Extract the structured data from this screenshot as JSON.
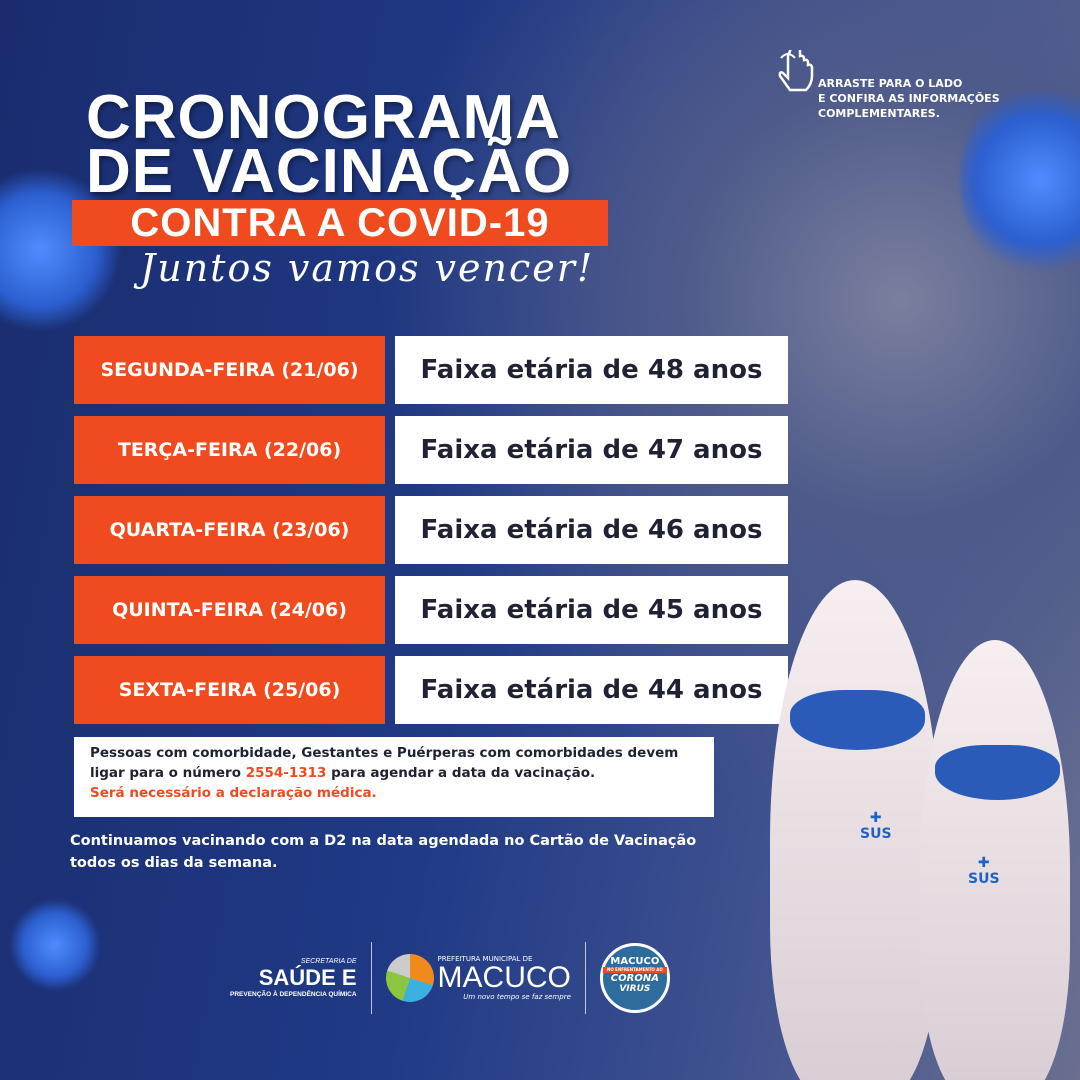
{
  "swipe": {
    "icon": "hand-swipe-icon",
    "lines": [
      "ARRASTE PARA O LADO",
      "E CONFIRA AS INFORMAÇÕES",
      "COMPLEMENTARES."
    ]
  },
  "title": {
    "line1": "CRONOGRAMA",
    "line2": "DE VACINAÇÃO",
    "band": "CONTRA A COVID-19",
    "script": "Juntos vamos vencer!"
  },
  "schedule": [
    {
      "day": "SEGUNDA-FEIRA (21/06)",
      "group": "Faixa etária de 48 anos"
    },
    {
      "day": "TERÇA-FEIRA (22/06)",
      "group": "Faixa etária de 47 anos"
    },
    {
      "day": "QUARTA-FEIRA (23/06)",
      "group": "Faixa etária de 46 anos"
    },
    {
      "day": "QUINTA-FEIRA (24/06)",
      "group": "Faixa etária de 45 anos"
    },
    {
      "day": "SEXTA-FEIRA (25/06)",
      "group": "Faixa etária de 44 anos"
    }
  ],
  "note": {
    "line1": "Pessoas com comorbidade, Gestantes e Puérperas com comorbidades devem",
    "line2_pre": "ligar para o número ",
    "phone": "2554-1313",
    "line2_post": " para agendar a data da vacinação.",
    "line3": "Será necessário a declaração médica."
  },
  "continuation": {
    "line1": "Continuamos vacinando com a D2 na data agendada no Cartão de Vacinação",
    "line2": "todos os dias da semana."
  },
  "footer": {
    "saude": {
      "top": "SECRETARIA DE",
      "main": "SAÚDE E",
      "sub": "PREVENÇÃO À DEPENDÊNCIA QUÍMICA"
    },
    "macuco": {
      "top": "PREFEITURA MUNICIPAL DE",
      "main": "MACUCO",
      "slogan": "Um novo tempo se faz sempre"
    },
    "badge": {
      "top": "MACUCO",
      "mid": "NO ENFRENTAMENTO AO",
      "main1": "CORONA",
      "main2": "VIRUS"
    }
  },
  "mascots": {
    "label": "SUS"
  },
  "colors": {
    "orange": "#ef4b1e",
    "navy": "#1a2c6e",
    "white": "#ffffff"
  }
}
